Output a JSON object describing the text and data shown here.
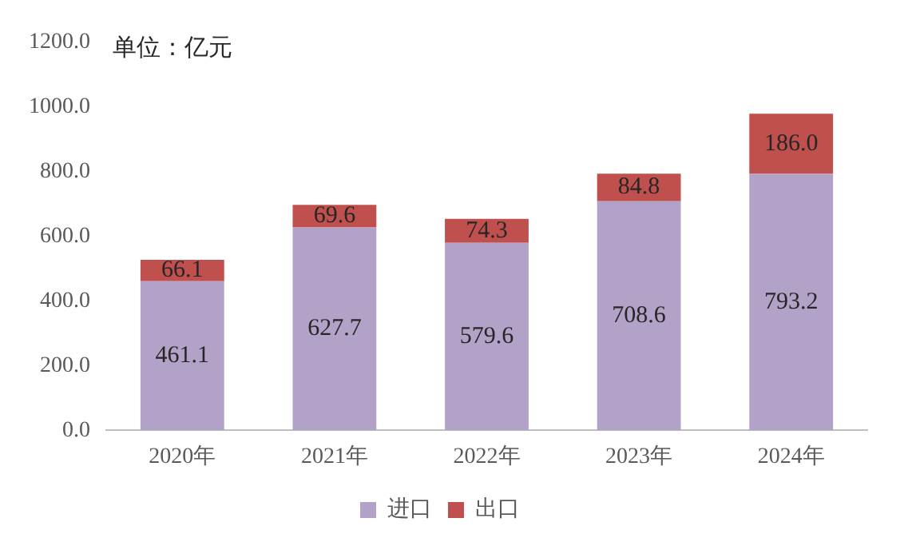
{
  "chart_data": {
    "type": "bar",
    "stacked": true,
    "annotations": [
      "单位：亿元"
    ],
    "categories": [
      "2020年",
      "2021年",
      "2022年",
      "2023年",
      "2024年"
    ],
    "series": [
      {
        "name": "进口",
        "color": "#b3a2c7",
        "values": [
          461.1,
          627.7,
          579.6,
          708.6,
          793.2
        ],
        "value_labels": [
          "461.1",
          "627.7",
          "579.6",
          "708.6",
          "793.2"
        ]
      },
      {
        "name": "出口",
        "color": "#c0504d",
        "values": [
          66.1,
          69.6,
          74.3,
          84.8,
          186.0
        ],
        "value_labels": [
          "66.1",
          "69.6",
          "74.3",
          "84.8",
          "186.0"
        ]
      }
    ],
    "ylim": [
      0,
      1200
    ],
    "yticks": [
      {
        "value": 0,
        "label": "0.0"
      },
      {
        "value": 200,
        "label": "200.0"
      },
      {
        "value": 400,
        "label": "400.0"
      },
      {
        "value": 600,
        "label": "600.0"
      },
      {
        "value": 800,
        "label": "800.0"
      },
      {
        "value": 1000,
        "label": "1000.0"
      },
      {
        "value": 1200,
        "label": "1200.0"
      }
    ],
    "grid": false,
    "legend": "bottom"
  }
}
